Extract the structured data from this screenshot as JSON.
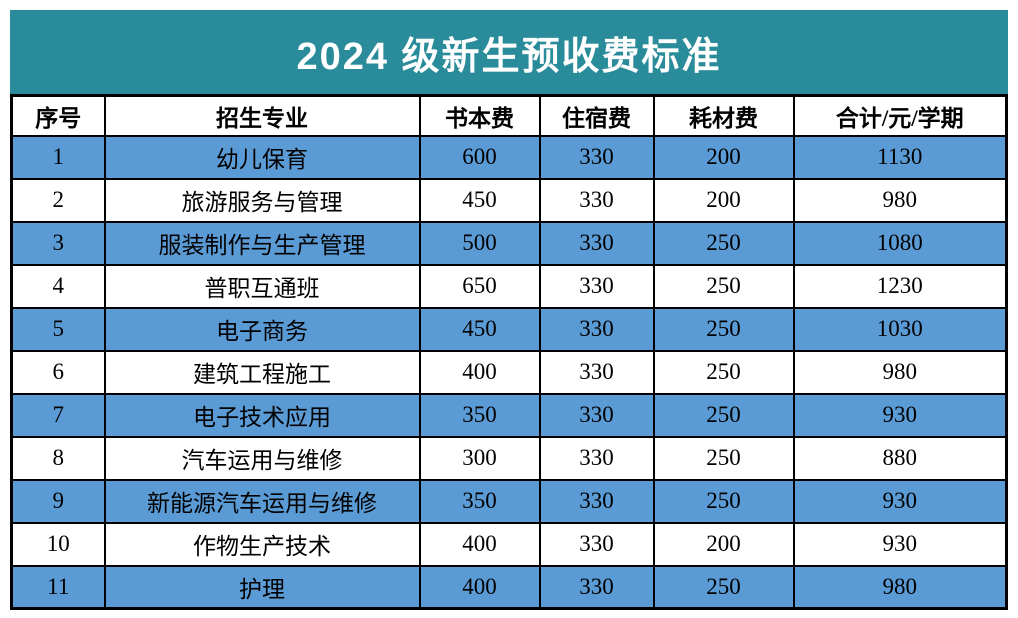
{
  "title": "2024 级新生预收费标准",
  "colors": {
    "title_band_teal": "#2A8C9A",
    "row_blue": "#5B9BD5",
    "row_white": "#FFFFFF",
    "border_black": "#000000",
    "title_text": "#FFFFFF"
  },
  "table": {
    "columns": [
      "序号",
      "招生专业",
      "书本费",
      "住宿费",
      "耗材费",
      "合计/元/学期"
    ],
    "rows": [
      [
        "1",
        "幼儿保育",
        "600",
        "330",
        "200",
        "1130"
      ],
      [
        "2",
        "旅游服务与管理",
        "450",
        "330",
        "200",
        "980"
      ],
      [
        "3",
        "服装制作与生产管理",
        "500",
        "330",
        "250",
        "1080"
      ],
      [
        "4",
        "普职互通班",
        "650",
        "330",
        "250",
        "1230"
      ],
      [
        "5",
        "电子商务",
        "450",
        "330",
        "250",
        "1030"
      ],
      [
        "6",
        "建筑工程施工",
        "400",
        "330",
        "250",
        "980"
      ],
      [
        "7",
        "电子技术应用",
        "350",
        "330",
        "250",
        "930"
      ],
      [
        "8",
        "汽车运用与维修",
        "300",
        "330",
        "250",
        "880"
      ],
      [
        "9",
        "新能源汽车运用与维修",
        "350",
        "330",
        "250",
        "930"
      ],
      [
        "10",
        "作物生产技术",
        "400",
        "330",
        "200",
        "930"
      ],
      [
        "11",
        "护理",
        "400",
        "330",
        "250",
        "980"
      ]
    ]
  }
}
